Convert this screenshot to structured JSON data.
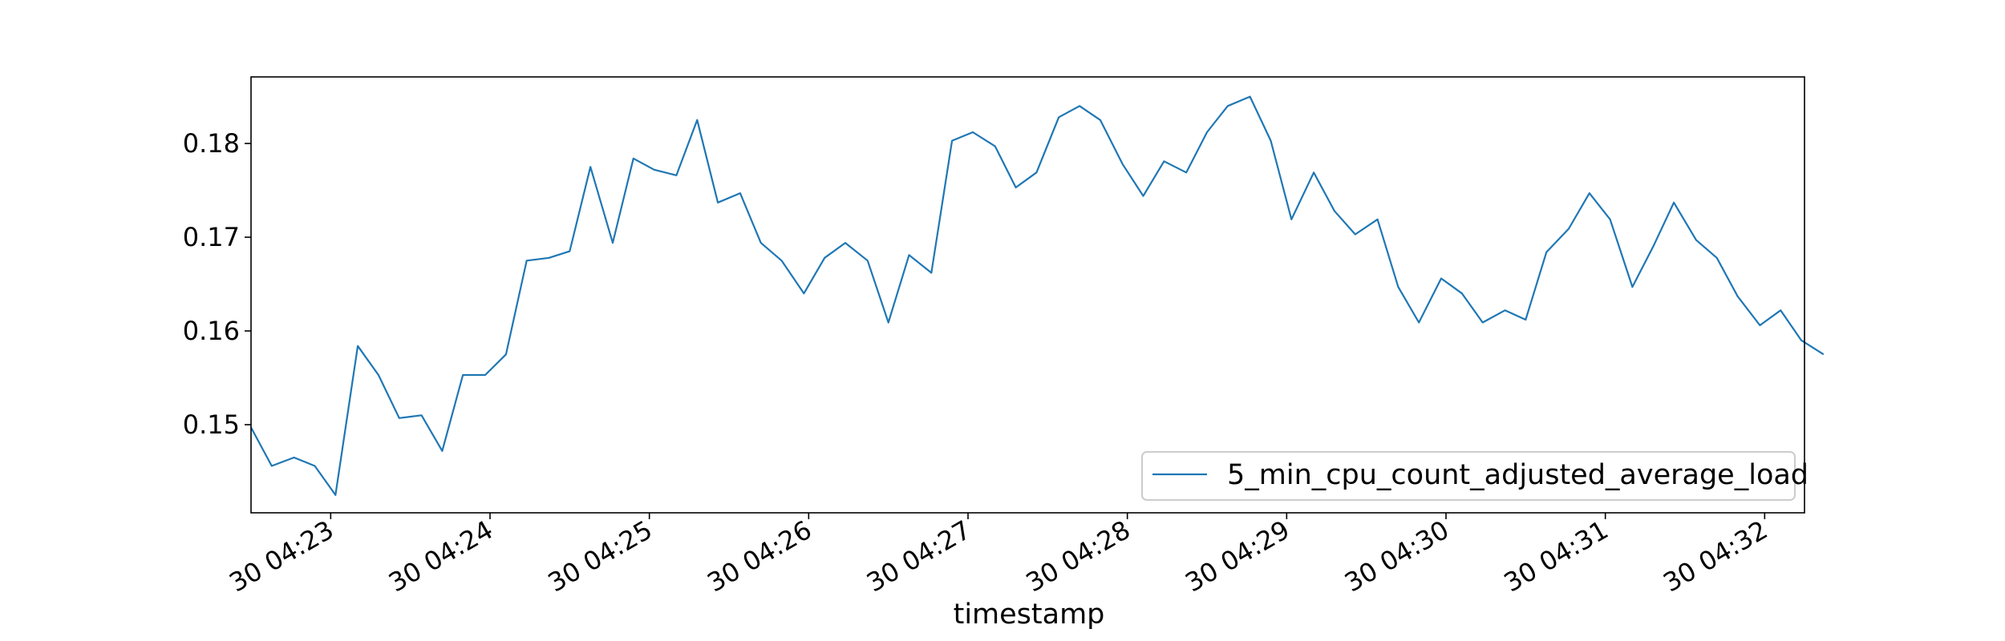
{
  "chart_data": {
    "type": "line",
    "title": "",
    "xlabel": "timestamp",
    "ylabel": "",
    "grid": false,
    "legend_position": "lower-right",
    "series_color": "#1f77b4",
    "series": [
      {
        "name": "5_min_cpu_count_adjusted_average_load",
        "x_minutes": [
          0.0,
          0.13,
          0.27,
          0.4,
          0.53,
          0.67,
          0.8,
          0.93,
          1.07,
          1.2,
          1.33,
          1.47,
          1.6,
          1.73,
          1.87,
          2.0,
          2.13,
          2.27,
          2.4,
          2.53,
          2.67,
          2.8,
          2.93,
          3.07,
          3.2,
          3.33,
          3.47,
          3.6,
          3.73,
          3.87,
          4.0,
          4.13,
          4.27,
          4.4,
          4.53,
          4.67,
          4.8,
          4.93,
          5.07,
          5.2,
          5.33,
          5.47,
          5.6,
          5.73,
          5.87,
          6.0,
          6.13,
          6.27,
          6.4,
          6.53,
          6.67,
          6.8,
          6.93,
          7.07,
          7.2,
          7.33,
          7.47,
          7.6,
          7.73,
          7.87,
          8.0,
          8.13,
          8.27,
          8.4,
          8.53,
          8.67,
          8.8,
          8.93,
          9.07,
          9.2,
          9.33,
          9.47,
          9.6,
          9.73,
          9.87
        ],
        "values": [
          0.1497,
          0.1456,
          0.1465,
          0.1456,
          0.1425,
          0.1584,
          0.1553,
          0.1507,
          0.151,
          0.1472,
          0.1553,
          0.1553,
          0.1575,
          0.1675,
          0.1678,
          0.1685,
          0.1775,
          0.1694,
          0.1784,
          0.1772,
          0.1766,
          0.1825,
          0.1737,
          0.1747,
          0.1694,
          0.1675,
          0.164,
          0.1678,
          0.1694,
          0.1675,
          0.1609,
          0.1681,
          0.1662,
          0.1803,
          0.1812,
          0.1797,
          0.1753,
          0.1769,
          0.1828,
          0.184,
          0.1825,
          0.1778,
          0.1744,
          0.1781,
          0.1769,
          0.1812,
          0.184,
          0.185,
          0.1803,
          0.1719,
          0.1769,
          0.1728,
          0.1703,
          0.1719,
          0.1647,
          0.1609,
          0.1656,
          0.164,
          0.1609,
          0.1622,
          0.1612,
          0.1684,
          0.1709,
          0.1747,
          0.1719,
          0.1647,
          0.169,
          0.1737,
          0.1697,
          0.1678,
          0.1637,
          0.1606,
          0.1622,
          0.159,
          0.1575
        ]
      }
    ],
    "x_ticks": [
      {
        "minute": 0.5,
        "label": "30 04:23"
      },
      {
        "minute": 1.5,
        "label": "30 04:24"
      },
      {
        "minute": 2.5,
        "label": "30 04:25"
      },
      {
        "minute": 3.5,
        "label": "30 04:26"
      },
      {
        "minute": 4.5,
        "label": "30 04:27"
      },
      {
        "minute": 5.5,
        "label": "30 04:28"
      },
      {
        "minute": 6.5,
        "label": "30 04:29"
      },
      {
        "minute": 7.5,
        "label": "30 04:30"
      },
      {
        "minute": 8.5,
        "label": "30 04:31"
      },
      {
        "minute": 9.5,
        "label": "30 04:32"
      }
    ],
    "xlim": [
      0.0,
      9.75
    ],
    "y_ticks": [
      0.15,
      0.16,
      0.17,
      0.18
    ],
    "y_tick_labels": [
      "0.15",
      "0.16",
      "0.17",
      "0.18"
    ],
    "ylim": [
      0.1406,
      0.1871
    ]
  }
}
